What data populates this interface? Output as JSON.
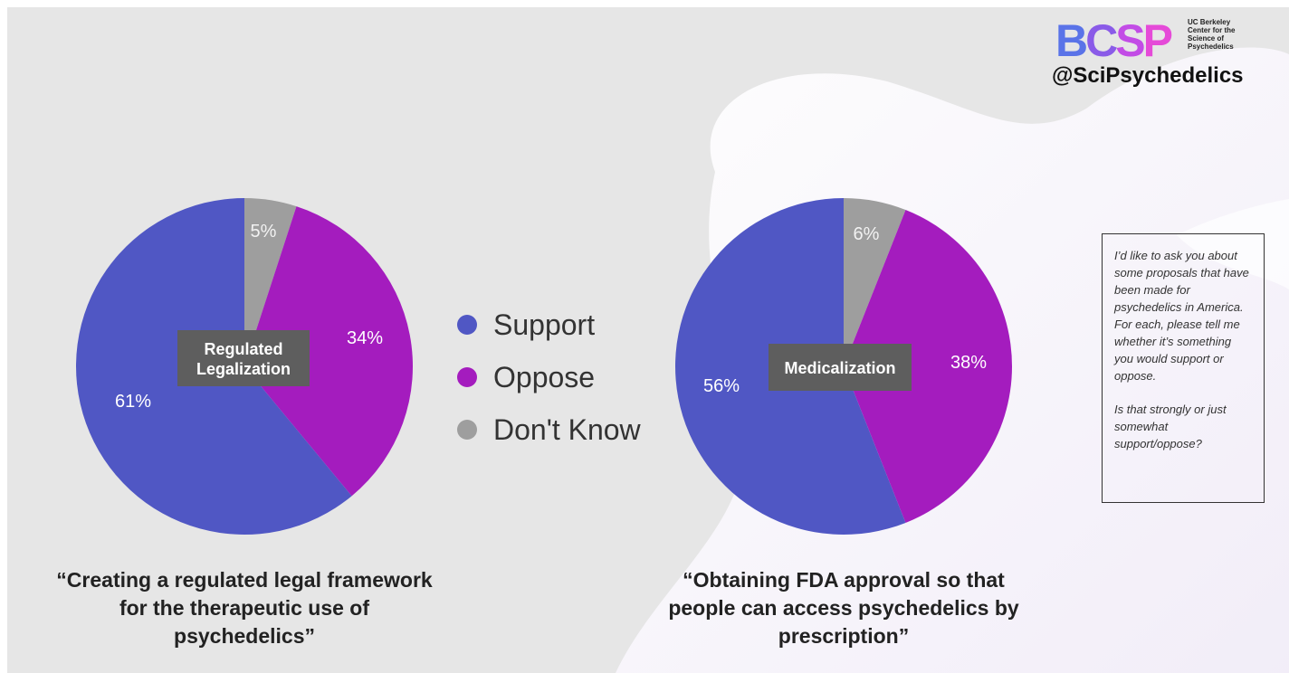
{
  "logo": {
    "letters": [
      "B",
      "C",
      "S",
      "P"
    ],
    "org_lines": [
      "UC Berkeley",
      "Center for the",
      "Science of",
      "Psychedelics"
    ]
  },
  "handle": "@SciPsychedelics",
  "legend": [
    {
      "label": "Support",
      "color": "#5057c4"
    },
    {
      "label": "Oppose",
      "color": "#a41cbe"
    },
    {
      "label": "Don't Know",
      "color": "#9e9e9e"
    }
  ],
  "chart_data": [
    {
      "type": "pie",
      "center_label_lines": [
        "Regulated",
        "Legalization"
      ],
      "categories": [
        "Support",
        "Oppose",
        "Don't Know"
      ],
      "values": [
        61,
        34,
        5
      ],
      "data_labels": [
        "61%",
        "34%",
        "5%"
      ],
      "colors": [
        "#5057c4",
        "#a41cbe",
        "#9e9e9e"
      ],
      "caption": "“Creating a regulated legal framework for the therapeutic use of psychedelics”"
    },
    {
      "type": "pie",
      "center_label_lines": [
        "Medicalization"
      ],
      "categories": [
        "Support",
        "Oppose",
        "Don't Know"
      ],
      "values": [
        56,
        38,
        6
      ],
      "data_labels": [
        "56%",
        "38%",
        "6%"
      ],
      "colors": [
        "#5057c4",
        "#a41cbe",
        "#9e9e9e"
      ],
      "caption": "“Obtaining FDA approval so that people can access psychedelics by prescription”"
    }
  ],
  "note": {
    "question": "I’d like to ask you about some proposals that have been made for psychedelics in America. For each, please tell me whether it’s something you would support or oppose.",
    "followup": "Is that strongly or just somewhat support/oppose?"
  }
}
